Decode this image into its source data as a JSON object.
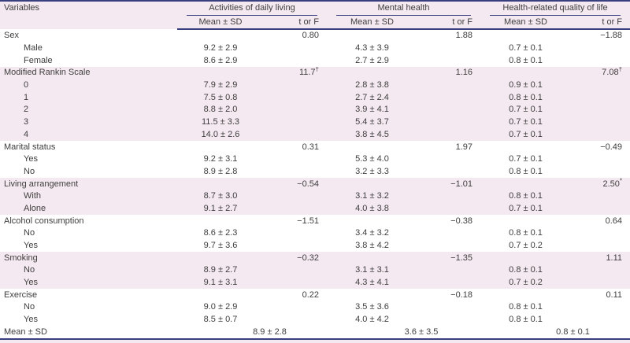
{
  "colors": {
    "rule_navy": "#3a3f80",
    "band_pink": "#f4e9f0",
    "text": "#3e3e3e"
  },
  "header": {
    "variables_label": "Variables",
    "groups": [
      {
        "label": "Activities of daily living"
      },
      {
        "label": "Mental health"
      },
      {
        "label": "Health-related quality of life"
      }
    ],
    "subheaders": {
      "mean": "Mean ± SD",
      "torf": "t or F"
    }
  },
  "table": {
    "rows": [
      {
        "label": "Sex",
        "indent": false,
        "band": "white",
        "cells": [
          "",
          "0.80",
          "",
          "1.88",
          "",
          "−1.88"
        ],
        "sups": [
          "",
          "",
          "",
          "",
          "",
          ""
        ]
      },
      {
        "label": "Male",
        "indent": true,
        "band": "white",
        "cells": [
          "9.2 ± 2.9",
          "",
          "4.3 ± 3.9",
          "",
          "0.7 ± 0.1",
          ""
        ],
        "sups": [
          "",
          "",
          "",
          "",
          "",
          ""
        ]
      },
      {
        "label": "Female",
        "indent": true,
        "band": "white",
        "cells": [
          "8.6 ± 2.9",
          "",
          "2.7 ± 2.9",
          "",
          "0.8 ± 0.1",
          ""
        ],
        "sups": [
          "",
          "",
          "",
          "",
          "",
          ""
        ]
      },
      {
        "label": "Modified Rankin Scale",
        "indent": false,
        "band": "pink",
        "cells": [
          "",
          "11.7",
          "",
          "1.16",
          "",
          "7.08"
        ],
        "sups": [
          "",
          "†",
          "",
          "",
          "",
          "†"
        ]
      },
      {
        "label": "0",
        "indent": true,
        "band": "pink",
        "cells": [
          "7.9 ± 2.9",
          "",
          "2.8 ± 3.8",
          "",
          "0.9 ± 0.1",
          ""
        ],
        "sups": [
          "",
          "",
          "",
          "",
          "",
          ""
        ]
      },
      {
        "label": "1",
        "indent": true,
        "band": "pink",
        "cells": [
          "7.5 ± 0.8",
          "",
          "2.7 ± 2.4",
          "",
          "0.8 ± 0.1",
          ""
        ],
        "sups": [
          "",
          "",
          "",
          "",
          "",
          ""
        ]
      },
      {
        "label": "2",
        "indent": true,
        "band": "pink",
        "cells": [
          "8.8 ± 2.0",
          "",
          "3.9 ± 4.1",
          "",
          "0.7 ± 0.1",
          ""
        ],
        "sups": [
          "",
          "",
          "",
          "",
          "",
          ""
        ]
      },
      {
        "label": "3",
        "indent": true,
        "band": "pink",
        "cells": [
          "11.5 ± 3.3",
          "",
          "5.4 ± 3.7",
          "",
          "0.7 ± 0.1",
          ""
        ],
        "sups": [
          "",
          "",
          "",
          "",
          "",
          ""
        ]
      },
      {
        "label": "4",
        "indent": true,
        "band": "pink",
        "cells": [
          "14.0 ± 2.6",
          "",
          "3.8 ± 4.5",
          "",
          "0.7 ± 0.1",
          ""
        ],
        "sups": [
          "",
          "",
          "",
          "",
          "",
          ""
        ]
      },
      {
        "label": "Marital status",
        "indent": false,
        "band": "white",
        "cells": [
          "",
          "0.31",
          "",
          "1.97",
          "",
          "−0.49"
        ],
        "sups": [
          "",
          "",
          "",
          "",
          "",
          ""
        ]
      },
      {
        "label": "Yes",
        "indent": true,
        "band": "white",
        "cells": [
          "9.2 ± 3.1",
          "",
          "5.3 ± 4.0",
          "",
          "0.7 ± 0.1",
          ""
        ],
        "sups": [
          "",
          "",
          "",
          "",
          "",
          ""
        ]
      },
      {
        "label": "No",
        "indent": true,
        "band": "white",
        "cells": [
          "8.9 ± 2.8",
          "",
          "3.2 ± 3.3",
          "",
          "0.8 ± 0.1",
          ""
        ],
        "sups": [
          "",
          "",
          "",
          "",
          "",
          ""
        ]
      },
      {
        "label": "Living arrangement",
        "indent": false,
        "band": "pink",
        "cells": [
          "",
          "−0.54",
          "",
          "−1.01",
          "",
          "2.50"
        ],
        "sups": [
          "",
          "",
          "",
          "",
          "",
          "*"
        ]
      },
      {
        "label": "With",
        "indent": true,
        "band": "pink",
        "cells": [
          "8.7 ± 3.0",
          "",
          "3.1 ± 3.2",
          "",
          "0.8 ± 0.1",
          ""
        ],
        "sups": [
          "",
          "",
          "",
          "",
          "",
          ""
        ]
      },
      {
        "label": "Alone",
        "indent": true,
        "band": "pink",
        "cells": [
          "9.1 ± 2.7",
          "",
          "4.0 ± 3.8",
          "",
          "0.7 ± 0.1",
          ""
        ],
        "sups": [
          "",
          "",
          "",
          "",
          "",
          ""
        ]
      },
      {
        "label": "Alcohol consumption",
        "indent": false,
        "band": "white",
        "cells": [
          "",
          "−1.51",
          "",
          "−0.38",
          "",
          "0.64"
        ],
        "sups": [
          "",
          "",
          "",
          "",
          "",
          ""
        ]
      },
      {
        "label": "No",
        "indent": true,
        "band": "white",
        "cells": [
          "8.6 ± 2.3",
          "",
          "3.4 ± 3.2",
          "",
          "0.8 ± 0.1",
          ""
        ],
        "sups": [
          "",
          "",
          "",
          "",
          "",
          ""
        ]
      },
      {
        "label": "Yes",
        "indent": true,
        "band": "white",
        "cells": [
          "9.7 ± 3.6",
          "",
          "3.8 ± 4.2",
          "",
          "0.7 ± 0.2",
          ""
        ],
        "sups": [
          "",
          "",
          "",
          "",
          "",
          ""
        ]
      },
      {
        "label": "Smoking",
        "indent": false,
        "band": "pink",
        "cells": [
          "",
          "−0.32",
          "",
          "−1.35",
          "",
          "1.11"
        ],
        "sups": [
          "",
          "",
          "",
          "",
          "",
          ""
        ]
      },
      {
        "label": "No",
        "indent": true,
        "band": "pink",
        "cells": [
          "8.9 ± 2.7",
          "",
          "3.1 ± 3.1",
          "",
          "0.8 ± 0.1",
          ""
        ],
        "sups": [
          "",
          "",
          "",
          "",
          "",
          ""
        ]
      },
      {
        "label": "Yes",
        "indent": true,
        "band": "pink",
        "cells": [
          "9.1 ± 3.1",
          "",
          "4.3 ± 4.1",
          "",
          "0.7 ± 0.2",
          ""
        ],
        "sups": [
          "",
          "",
          "",
          "",
          "",
          ""
        ]
      },
      {
        "label": "Exercise",
        "indent": false,
        "band": "white",
        "cells": [
          "",
          "0.22",
          "",
          "−0.18",
          "",
          "0.11"
        ],
        "sups": [
          "",
          "",
          "",
          "",
          "",
          ""
        ]
      },
      {
        "label": "No",
        "indent": true,
        "band": "white",
        "cells": [
          "9.0 ± 2.9",
          "",
          "3.5 ± 3.6",
          "",
          "0.8 ± 0.1",
          ""
        ],
        "sups": [
          "",
          "",
          "",
          "",
          "",
          ""
        ]
      },
      {
        "label": "Yes",
        "indent": true,
        "band": "white",
        "cells": [
          "8.5 ± 0.7",
          "",
          "4.0 ± 4.2",
          "",
          "0.8 ± 0.1",
          ""
        ],
        "sups": [
          "",
          "",
          "",
          "",
          "",
          ""
        ]
      },
      {
        "label": "Mean ± SD",
        "indent": false,
        "band": "white",
        "span": true,
        "cells": [
          "8.9 ± 2.8",
          "3.6 ± 3.5",
          "0.8 ± 0.1"
        ]
      }
    ]
  }
}
